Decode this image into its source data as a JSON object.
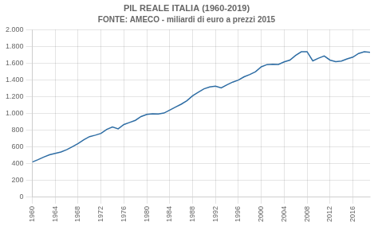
{
  "chart_data": {
    "type": "line",
    "title": "PIL REALE ITALIA (1960-2019)",
    "subtitle": "FONTE: AMECO - miliardi di euro a prezzi 2015",
    "x": [
      1960,
      1961,
      1962,
      1963,
      1964,
      1965,
      1966,
      1967,
      1968,
      1969,
      1970,
      1971,
      1972,
      1973,
      1974,
      1975,
      1976,
      1977,
      1978,
      1979,
      1980,
      1981,
      1982,
      1983,
      1984,
      1985,
      1986,
      1987,
      1988,
      1989,
      1990,
      1991,
      1992,
      1993,
      1994,
      1995,
      1996,
      1997,
      1998,
      1999,
      2000,
      2001,
      2002,
      2003,
      2004,
      2005,
      2006,
      2007,
      2008,
      2009,
      2010,
      2011,
      2012,
      2013,
      2014,
      2015,
      2016,
      2017,
      2018,
      2019
    ],
    "values": [
      421,
      449,
      480,
      508,
      524,
      540,
      568,
      604,
      641,
      686,
      724,
      741,
      762,
      810,
      839,
      817,
      868,
      893,
      918,
      963,
      989,
      995,
      993,
      1005,
      1040,
      1076,
      1110,
      1151,
      1210,
      1254,
      1294,
      1316,
      1326,
      1305,
      1341,
      1374,
      1398,
      1437,
      1464,
      1498,
      1556,
      1583,
      1587,
      1584,
      1615,
      1636,
      1693,
      1736,
      1737,
      1627,
      1659,
      1685,
      1637,
      1617,
      1625,
      1651,
      1672,
      1715,
      1735,
      1728
    ],
    "color": "#2E6DA4",
    "xlim": [
      1960,
      2019
    ],
    "xticks": [
      1960,
      1964,
      1968,
      1972,
      1976,
      1980,
      1984,
      1988,
      1992,
      1996,
      2000,
      2004,
      2008,
      2012,
      2016
    ],
    "ylim": [
      0,
      2000
    ],
    "yticks": [
      0,
      200,
      400,
      600,
      800,
      {
        "value": 1000,
        "label": "1.000"
      },
      {
        "value": 1200,
        "label": "1.200"
      },
      {
        "value": 1400,
        "label": "1.400"
      },
      {
        "value": 1600,
        "label": "1.600"
      },
      {
        "value": 1800,
        "label": "1.800"
      },
      {
        "value": 2000,
        "label": "2.000"
      }
    ],
    "grid": true
  }
}
